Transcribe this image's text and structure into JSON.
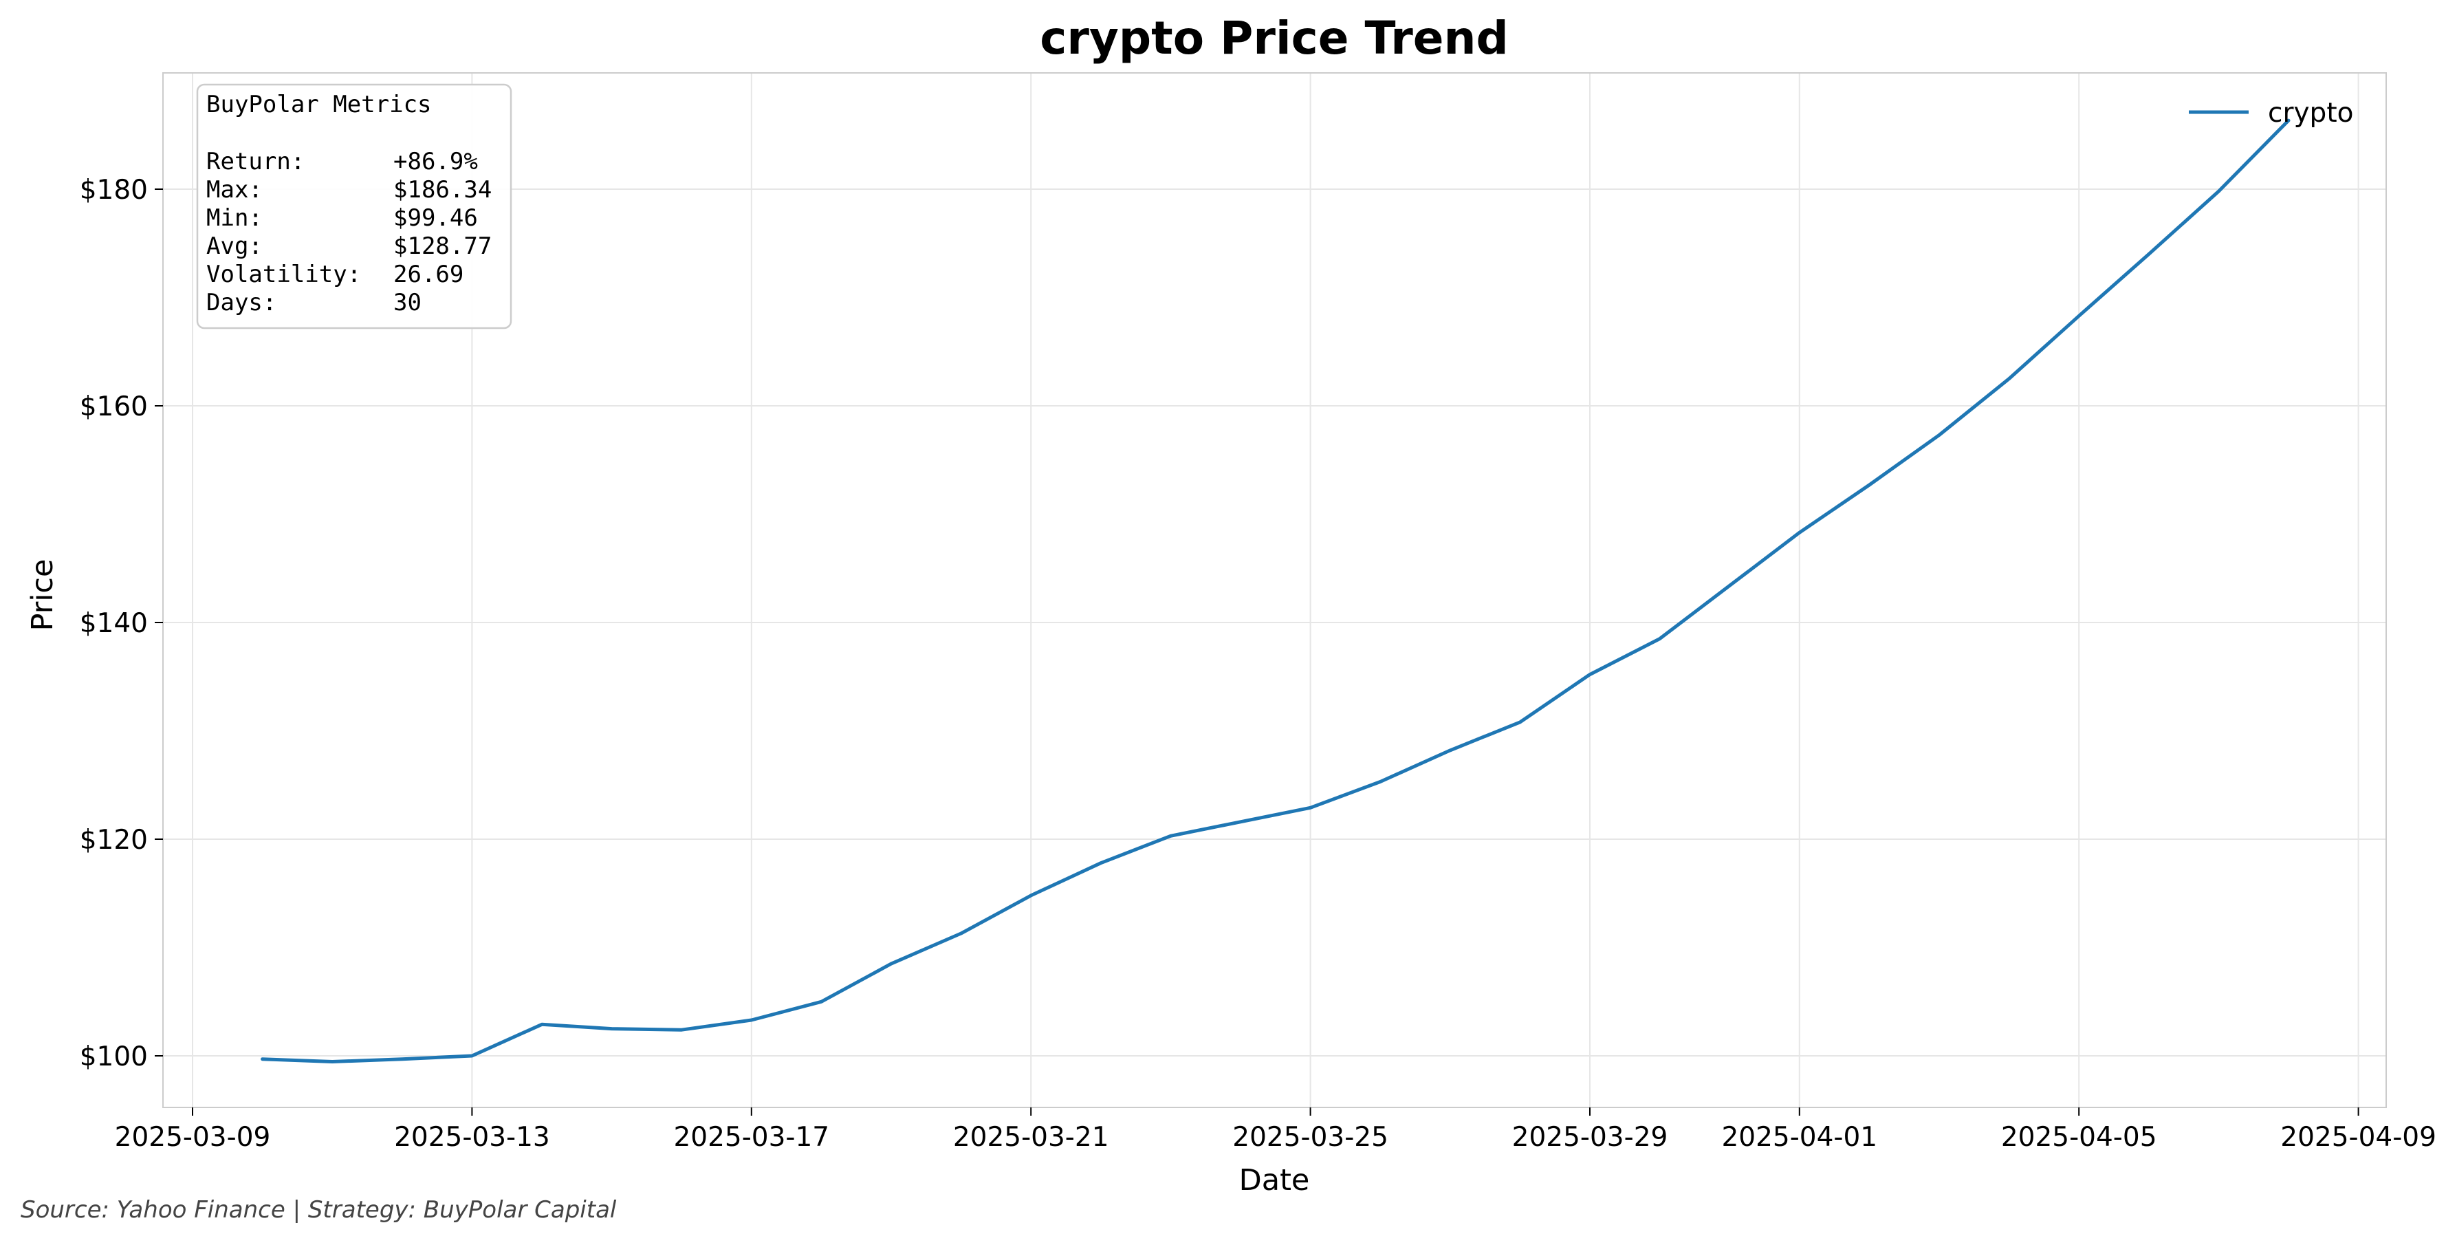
{
  "chart_data": {
    "type": "line",
    "title": "crypto Price Trend",
    "xlabel": "Date",
    "ylabel": "Price",
    "x_tick_labels": [
      "2025-03-09",
      "2025-03-13",
      "2025-03-17",
      "2025-03-21",
      "2025-03-25",
      "2025-03-29",
      "2025-04-01",
      "2025-04-05",
      "2025-04-09"
    ],
    "y_tick_labels": [
      "$100",
      "$120",
      "$140",
      "$160",
      "$180"
    ],
    "ylim": [
      95,
      191
    ],
    "grid": true,
    "legend_placement": "top-right",
    "series": [
      {
        "name": "crypto",
        "color": "#1f77b4",
        "x": [
          "2025-03-10",
          "2025-03-11",
          "2025-03-12",
          "2025-03-13",
          "2025-03-14",
          "2025-03-15",
          "2025-03-16",
          "2025-03-17",
          "2025-03-18",
          "2025-03-19",
          "2025-03-20",
          "2025-03-21",
          "2025-03-22",
          "2025-03-23",
          "2025-03-24",
          "2025-03-25",
          "2025-03-26",
          "2025-03-27",
          "2025-03-28",
          "2025-03-29",
          "2025-03-30",
          "2025-03-31",
          "2025-04-01",
          "2025-04-02",
          "2025-04-03",
          "2025-04-04",
          "2025-04-05",
          "2025-04-06",
          "2025-04-07",
          "2025-04-08"
        ],
        "values": [
          99.7,
          99.46,
          99.7,
          100.0,
          102.9,
          102.5,
          102.4,
          103.3,
          105.0,
          108.5,
          111.3,
          114.8,
          117.8,
          120.3,
          121.6,
          122.9,
          125.3,
          128.2,
          130.8,
          135.2,
          138.5,
          143.4,
          148.3,
          152.7,
          157.3,
          162.5,
          168.3,
          174.0,
          179.8,
          186.34
        ]
      }
    ],
    "annotations": {
      "metrics_box": {
        "title": "BuyPolar Metrics",
        "rows": [
          {
            "label": "Return:",
            "value": "+86.9%"
          },
          {
            "label": "Max:",
            "value": "$186.34"
          },
          {
            "label": "Min:",
            "value": "$99.46"
          },
          {
            "label": "Avg:",
            "value": "$128.77"
          },
          {
            "label": "Volatility:",
            "value": "26.69"
          },
          {
            "label": "Days:",
            "value": "30"
          }
        ]
      },
      "footnote": "Source: Yahoo Finance | Strategy: BuyPolar Capital"
    }
  }
}
